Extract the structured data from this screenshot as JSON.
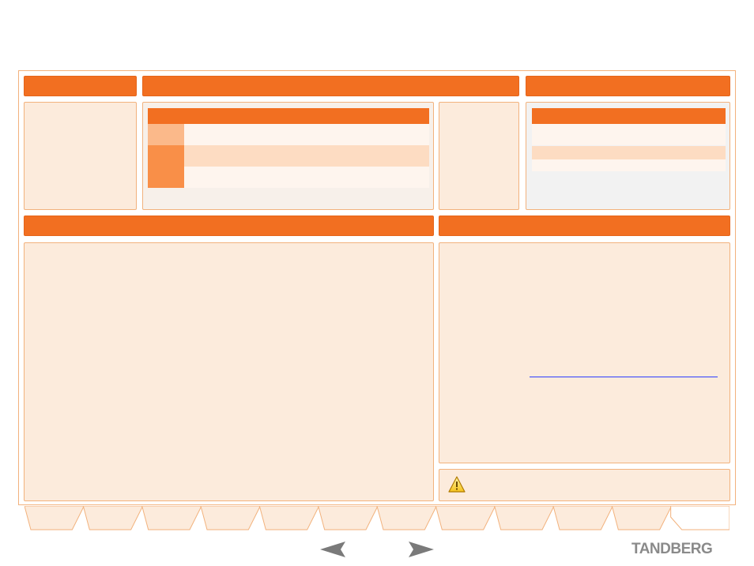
{
  "sections": {
    "overview_header": "",
    "main_header": "",
    "right_header": "",
    "bottom_left_header": "",
    "bottom_right_header": ""
  },
  "right_panel": {
    "link_text": ""
  },
  "warning": {
    "icon": "warning-triangle-icon",
    "text": ""
  },
  "tabs": [
    {
      "label": ""
    },
    {
      "label": ""
    },
    {
      "label": ""
    },
    {
      "label": ""
    },
    {
      "label": ""
    },
    {
      "label": ""
    },
    {
      "label": ""
    },
    {
      "label": ""
    },
    {
      "label": ""
    },
    {
      "label": ""
    },
    {
      "label": ""
    },
    {
      "label": ""
    }
  ],
  "navigation": {
    "prev_icon": "arrow-left-icon",
    "next_icon": "arrow-right-icon"
  },
  "brand": {
    "logo": "TANDBERG"
  },
  "colors": {
    "accent": "#f26f21",
    "panel_bg": "#fcebdc",
    "border": "#f2b27d",
    "row_light": "#fef5ee",
    "row_peach": "#fddcc2",
    "cell_light_orange": "#fbb98a",
    "cell_orange": "#f98f48",
    "link": "#2b3dff"
  }
}
